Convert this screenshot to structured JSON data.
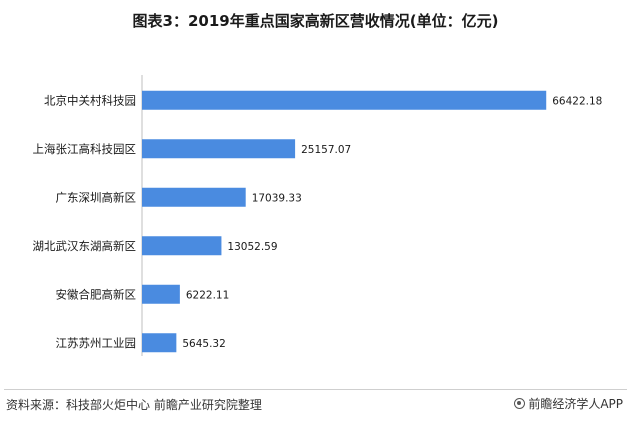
{
  "title": "图表3：2019年重点国家高新区营收情况(单位：亿元)",
  "chart_data": {
    "type": "bar",
    "orientation": "horizontal",
    "title": "图表3：2019年重点国家高新区营收情况(单位：亿元)",
    "categories": [
      "北京中关村科技园",
      "上海张江高科技园区",
      "广东深圳高新区",
      "湖北武汉东湖高新区",
      "安徽合肥高新区",
      "江苏苏州工业园"
    ],
    "values": [
      66422.18,
      25157.07,
      17039.33,
      13052.59,
      6222.11,
      5645.32
    ],
    "value_labels": [
      "66422.18",
      "25157.07",
      "17039.33",
      "13052.59",
      "6222.11",
      "5645.32"
    ],
    "xlim": [
      0,
      70000
    ],
    "bar_color": "#4a8be0",
    "grid": false,
    "legend": "none"
  },
  "footer": {
    "source": "资料来源：科技部火炬中心 前瞻产业研究院整理",
    "brand": "前瞻经济学人APP"
  }
}
